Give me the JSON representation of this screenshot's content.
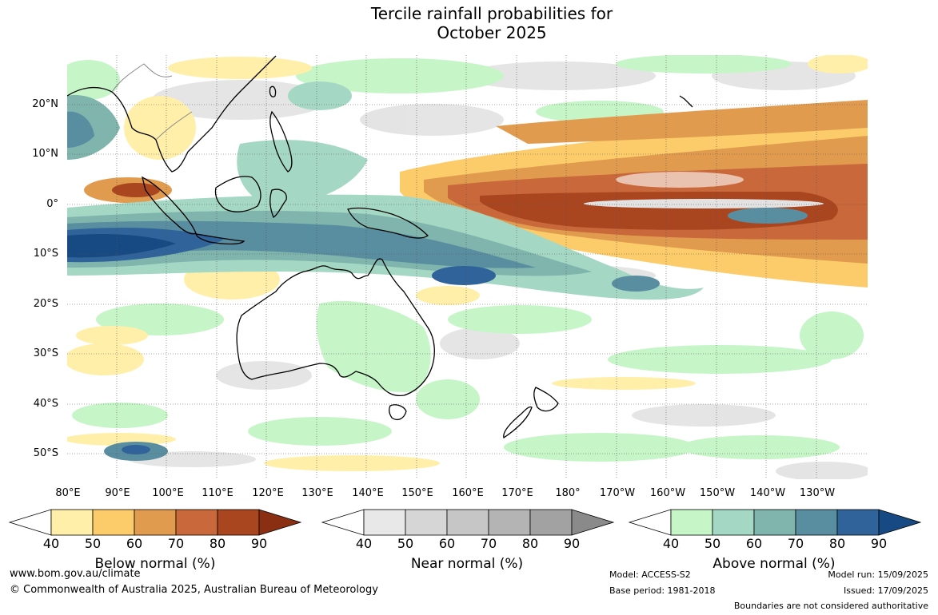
{
  "title_line1": "Tercile rainfall probabilities for",
  "title_line2": "October 2025",
  "lat_labels": [
    "20°N",
    "10°N",
    "0°",
    "10°S",
    "20°S",
    "30°S",
    "40°S",
    "50°S"
  ],
  "lon_labels": [
    "80°E",
    "90°E",
    "100°E",
    "110°E",
    "120°E",
    "130°E",
    "140°E",
    "150°E",
    "160°E",
    "170°E",
    "180°",
    "170°W",
    "160°W",
    "150°W",
    "140°W",
    "130°W"
  ],
  "colorbars": [
    {
      "title": "Below normal (%)",
      "ticks": [
        "40",
        "50",
        "60",
        "70",
        "80",
        "90"
      ],
      "colors": [
        "#ffefa8",
        "#fdcc6a",
        "#e09b4e",
        "#c9683a",
        "#a9461f",
        "#8a2f12"
      ]
    },
    {
      "title": "Near normal (%)",
      "ticks": [
        "40",
        "50",
        "60",
        "70",
        "80",
        "90"
      ],
      "colors": [
        "#e8e8e8",
        "#d6d6d6",
        "#c6c6c6",
        "#b4b4b4",
        "#a2a2a2",
        "#8a8a8a"
      ]
    },
    {
      "title": "Above normal (%)",
      "ticks": [
        "40",
        "50",
        "60",
        "70",
        "80",
        "90"
      ],
      "colors": [
        "#c6f5c8",
        "#a5d8c4",
        "#7fb5ad",
        "#588e9f",
        "#2f6399",
        "#174a82"
      ]
    }
  ],
  "footer": {
    "website": "www.bom.gov.au/climate",
    "copyright": "© Commonwealth of Australia 2025, Australian Bureau of Meteorology",
    "model": "Model: ACCESS-S2",
    "base_period": "Base period: 1981-2018",
    "model_run": "Model run: 15/09/2025",
    "issued": "Issued: 17/09/2025",
    "boundaries": "Boundaries are not considered authoritative"
  }
}
